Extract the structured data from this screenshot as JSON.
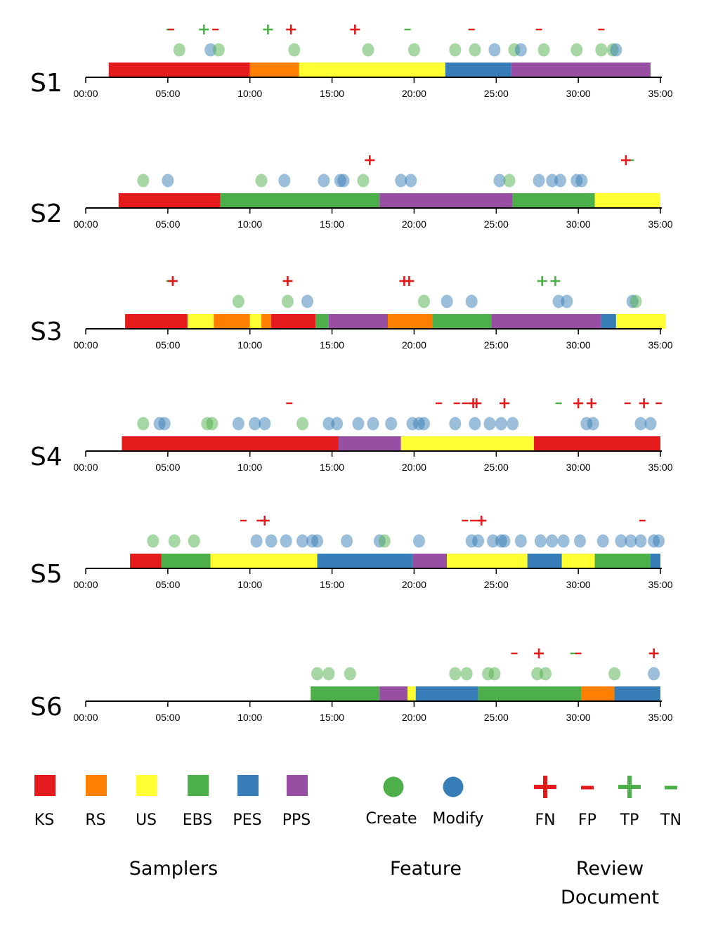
{
  "colors": {
    "KS": "#e41a1c",
    "RS": "#ff7f00",
    "US": "#ffff33",
    "EBS": "#4daf4a",
    "PES": "#377eb8",
    "PPS": "#984ea3",
    "create": "#4daf4a",
    "modify": "#377eb8",
    "fn": "#e41a1c",
    "fp": "#e41a1c",
    "tp": "#4daf4a",
    "tn": "#4daf4a"
  },
  "chart_data": {
    "type": "timeline",
    "x_unit": "minutes",
    "xlim": [
      0,
      35
    ],
    "tick_values": [
      0,
      5,
      10,
      15,
      20,
      25,
      30,
      35
    ],
    "tick_labels": [
      "00:00",
      "05:00",
      "10:00",
      "15:00",
      "20:00",
      "25:00",
      "30:00",
      "35:00"
    ],
    "sessions": [
      {
        "label": "S1",
        "segments": [
          {
            "sampler": "KS",
            "start": 1.4,
            "end": 10.0
          },
          {
            "sampler": "RS",
            "start": 10.0,
            "end": 13.0
          },
          {
            "sampler": "US",
            "start": 13.0,
            "end": 21.9
          },
          {
            "sampler": "PES",
            "start": 21.9,
            "end": 25.9
          },
          {
            "sampler": "PPS",
            "start": 25.9,
            "end": 34.4
          }
        ],
        "features": [
          {
            "t": 5.7,
            "kind": "create"
          },
          {
            "t": 7.6,
            "kind": "modify"
          },
          {
            "t": 8.1,
            "kind": "create"
          },
          {
            "t": 12.7,
            "kind": "create"
          },
          {
            "t": 17.2,
            "kind": "create"
          },
          {
            "t": 20.0,
            "kind": "create"
          },
          {
            "t": 22.5,
            "kind": "create"
          },
          {
            "t": 23.7,
            "kind": "create"
          },
          {
            "t": 24.9,
            "kind": "modify"
          },
          {
            "t": 26.1,
            "kind": "create"
          },
          {
            "t": 26.5,
            "kind": "modify"
          },
          {
            "t": 27.9,
            "kind": "create"
          },
          {
            "t": 29.9,
            "kind": "create"
          },
          {
            "t": 31.4,
            "kind": "create"
          },
          {
            "t": 32.1,
            "kind": "create"
          },
          {
            "t": 32.3,
            "kind": "modify"
          }
        ],
        "reviews": [
          {
            "t": 5.1,
            "kind": "TN"
          },
          {
            "t": 5.2,
            "kind": "FP"
          },
          {
            "t": 7.2,
            "kind": "TP"
          },
          {
            "t": 7.9,
            "kind": "FP"
          },
          {
            "t": 11.1,
            "kind": "TP"
          },
          {
            "t": 12.5,
            "kind": "FN"
          },
          {
            "t": 16.4,
            "kind": "FN"
          },
          {
            "t": 19.6,
            "kind": "TN"
          },
          {
            "t": 23.5,
            "kind": "FP"
          },
          {
            "t": 27.6,
            "kind": "FP"
          },
          {
            "t": 31.4,
            "kind": "FP"
          }
        ]
      },
      {
        "label": "S2",
        "segments": [
          {
            "sampler": "KS",
            "start": 2.0,
            "end": 8.2
          },
          {
            "sampler": "EBS",
            "start": 8.2,
            "end": 17.9
          },
          {
            "sampler": "PPS",
            "start": 17.9,
            "end": 26.0
          },
          {
            "sampler": "EBS",
            "start": 26.0,
            "end": 31.0
          },
          {
            "sampler": "US",
            "start": 31.0,
            "end": 35.0
          }
        ],
        "features": [
          {
            "t": 3.5,
            "kind": "create"
          },
          {
            "t": 5.0,
            "kind": "modify"
          },
          {
            "t": 10.7,
            "kind": "create"
          },
          {
            "t": 12.1,
            "kind": "modify"
          },
          {
            "t": 14.5,
            "kind": "modify"
          },
          {
            "t": 15.5,
            "kind": "modify"
          },
          {
            "t": 15.7,
            "kind": "modify"
          },
          {
            "t": 16.9,
            "kind": "create"
          },
          {
            "t": 19.2,
            "kind": "modify"
          },
          {
            "t": 19.8,
            "kind": "modify"
          },
          {
            "t": 25.2,
            "kind": "modify"
          },
          {
            "t": 25.8,
            "kind": "create"
          },
          {
            "t": 27.6,
            "kind": "modify"
          },
          {
            "t": 28.4,
            "kind": "modify"
          },
          {
            "t": 28.9,
            "kind": "modify"
          },
          {
            "t": 29.9,
            "kind": "modify"
          },
          {
            "t": 30.2,
            "kind": "modify"
          }
        ],
        "reviews": [
          {
            "t": 17.3,
            "kind": "FN"
          },
          {
            "t": 33.2,
            "kind": "TN"
          },
          {
            "t": 32.9,
            "kind": "FN"
          }
        ]
      },
      {
        "label": "S3",
        "segments": [
          {
            "sampler": "KS",
            "start": 2.4,
            "end": 6.2
          },
          {
            "sampler": "US",
            "start": 6.2,
            "end": 7.8
          },
          {
            "sampler": "RS",
            "start": 7.8,
            "end": 10.0
          },
          {
            "sampler": "US",
            "start": 10.0,
            "end": 10.7
          },
          {
            "sampler": "RS",
            "start": 10.7,
            "end": 11.3
          },
          {
            "sampler": "KS",
            "start": 11.3,
            "end": 14.0
          },
          {
            "sampler": "EBS",
            "start": 14.0,
            "end": 14.8
          },
          {
            "sampler": "PPS",
            "start": 14.8,
            "end": 18.4
          },
          {
            "sampler": "RS",
            "start": 18.4,
            "end": 21.1
          },
          {
            "sampler": "EBS",
            "start": 21.1,
            "end": 24.7
          },
          {
            "sampler": "PPS",
            "start": 24.7,
            "end": 31.4
          },
          {
            "sampler": "PES",
            "start": 31.4,
            "end": 32.3
          },
          {
            "sampler": "US",
            "start": 32.3,
            "end": 35.3
          }
        ],
        "features": [
          {
            "t": 9.3,
            "kind": "create"
          },
          {
            "t": 12.3,
            "kind": "create"
          },
          {
            "t": 13.5,
            "kind": "modify"
          },
          {
            "t": 20.6,
            "kind": "create"
          },
          {
            "t": 22.0,
            "kind": "modify"
          },
          {
            "t": 23.5,
            "kind": "modify"
          },
          {
            "t": 28.8,
            "kind": "modify"
          },
          {
            "t": 29.3,
            "kind": "modify"
          },
          {
            "t": 33.3,
            "kind": "modify"
          },
          {
            "t": 33.5,
            "kind": "create"
          }
        ],
        "reviews": [
          {
            "t": 5.1,
            "kind": "TN"
          },
          {
            "t": 5.3,
            "kind": "FN"
          },
          {
            "t": 12.3,
            "kind": "FN"
          },
          {
            "t": 19.4,
            "kind": "FN"
          },
          {
            "t": 19.7,
            "kind": "FN"
          },
          {
            "t": 27.8,
            "kind": "TP"
          },
          {
            "t": 28.6,
            "kind": "TP"
          }
        ]
      },
      {
        "label": "S4",
        "segments": [
          {
            "sampler": "KS",
            "start": 2.2,
            "end": 15.4
          },
          {
            "sampler": "PPS",
            "start": 15.4,
            "end": 19.2
          },
          {
            "sampler": "US",
            "start": 19.2,
            "end": 27.3
          },
          {
            "sampler": "KS",
            "start": 27.3,
            "end": 35.0
          }
        ],
        "features": [
          {
            "t": 3.5,
            "kind": "create"
          },
          {
            "t": 4.5,
            "kind": "modify"
          },
          {
            "t": 4.8,
            "kind": "modify"
          },
          {
            "t": 7.4,
            "kind": "create"
          },
          {
            "t": 7.7,
            "kind": "create"
          },
          {
            "t": 9.3,
            "kind": "modify"
          },
          {
            "t": 10.3,
            "kind": "modify"
          },
          {
            "t": 10.9,
            "kind": "modify"
          },
          {
            "t": 13.2,
            "kind": "create"
          },
          {
            "t": 14.8,
            "kind": "modify"
          },
          {
            "t": 15.3,
            "kind": "modify"
          },
          {
            "t": 16.6,
            "kind": "modify"
          },
          {
            "t": 17.5,
            "kind": "modify"
          },
          {
            "t": 18.6,
            "kind": "modify"
          },
          {
            "t": 19.9,
            "kind": "modify"
          },
          {
            "t": 20.3,
            "kind": "modify"
          },
          {
            "t": 20.6,
            "kind": "modify"
          },
          {
            "t": 22.5,
            "kind": "modify"
          },
          {
            "t": 23.7,
            "kind": "modify"
          },
          {
            "t": 24.6,
            "kind": "modify"
          },
          {
            "t": 25.3,
            "kind": "modify"
          },
          {
            "t": 26.0,
            "kind": "modify"
          },
          {
            "t": 30.5,
            "kind": "modify"
          },
          {
            "t": 30.9,
            "kind": "modify"
          },
          {
            "t": 33.8,
            "kind": "modify"
          },
          {
            "t": 34.4,
            "kind": "modify"
          }
        ],
        "reviews": [
          {
            "t": 12.4,
            "kind": "FP"
          },
          {
            "t": 21.5,
            "kind": "FP"
          },
          {
            "t": 22.6,
            "kind": "FP"
          },
          {
            "t": 23.1,
            "kind": "FP"
          },
          {
            "t": 23.6,
            "kind": "FN"
          },
          {
            "t": 23.8,
            "kind": "FN"
          },
          {
            "t": 25.5,
            "kind": "FN"
          },
          {
            "t": 28.8,
            "kind": "TN"
          },
          {
            "t": 30.0,
            "kind": "FN"
          },
          {
            "t": 30.8,
            "kind": "FN"
          },
          {
            "t": 33.0,
            "kind": "FP"
          },
          {
            "t": 34.0,
            "kind": "FN"
          },
          {
            "t": 34.9,
            "kind": "FP"
          }
        ]
      },
      {
        "label": "S5",
        "segments": [
          {
            "sampler": "KS",
            "start": 2.7,
            "end": 4.6
          },
          {
            "sampler": "EBS",
            "start": 4.6,
            "end": 7.6
          },
          {
            "sampler": "US",
            "start": 7.6,
            "end": 14.1
          },
          {
            "sampler": "PES",
            "start": 14.1,
            "end": 19.9
          },
          {
            "sampler": "PPS",
            "start": 19.9,
            "end": 22.0
          },
          {
            "sampler": "US",
            "start": 22.0,
            "end": 26.9
          },
          {
            "sampler": "PES",
            "start": 26.9,
            "end": 29.0
          },
          {
            "sampler": "US",
            "start": 29.0,
            "end": 31.0
          },
          {
            "sampler": "EBS",
            "start": 31.0,
            "end": 34.4
          },
          {
            "sampler": "PES",
            "start": 34.4,
            "end": 35.0
          }
        ],
        "features": [
          {
            "t": 4.1,
            "kind": "create"
          },
          {
            "t": 5.4,
            "kind": "create"
          },
          {
            "t": 6.6,
            "kind": "create"
          },
          {
            "t": 10.4,
            "kind": "modify"
          },
          {
            "t": 11.3,
            "kind": "modify"
          },
          {
            "t": 12.2,
            "kind": "modify"
          },
          {
            "t": 13.2,
            "kind": "modify"
          },
          {
            "t": 13.8,
            "kind": "modify"
          },
          {
            "t": 14.1,
            "kind": "modify"
          },
          {
            "t": 15.9,
            "kind": "modify"
          },
          {
            "t": 17.9,
            "kind": "modify"
          },
          {
            "t": 18.2,
            "kind": "create"
          },
          {
            "t": 20.3,
            "kind": "modify"
          },
          {
            "t": 23.5,
            "kind": "modify"
          },
          {
            "t": 23.9,
            "kind": "modify"
          },
          {
            "t": 24.8,
            "kind": "modify"
          },
          {
            "t": 25.3,
            "kind": "modify"
          },
          {
            "t": 25.5,
            "kind": "modify"
          },
          {
            "t": 26.5,
            "kind": "modify"
          },
          {
            "t": 27.7,
            "kind": "modify"
          },
          {
            "t": 28.4,
            "kind": "modify"
          },
          {
            "t": 29.1,
            "kind": "modify"
          },
          {
            "t": 30.1,
            "kind": "modify"
          },
          {
            "t": 31.5,
            "kind": "modify"
          },
          {
            "t": 32.6,
            "kind": "modify"
          },
          {
            "t": 33.2,
            "kind": "modify"
          },
          {
            "t": 33.8,
            "kind": "modify"
          },
          {
            "t": 34.6,
            "kind": "modify"
          },
          {
            "t": 34.9,
            "kind": "modify"
          }
        ],
        "reviews": [
          {
            "t": 9.6,
            "kind": "FP"
          },
          {
            "t": 10.6,
            "kind": "FP"
          },
          {
            "t": 10.9,
            "kind": "FN"
          },
          {
            "t": 23.1,
            "kind": "FP"
          },
          {
            "t": 23.6,
            "kind": "FP"
          },
          {
            "t": 24.1,
            "kind": "FN"
          },
          {
            "t": 33.9,
            "kind": "FP"
          }
        ]
      },
      {
        "label": "S6",
        "segments": [
          {
            "sampler": "EBS",
            "start": 13.7,
            "end": 17.9
          },
          {
            "sampler": "PPS",
            "start": 17.9,
            "end": 19.6
          },
          {
            "sampler": "US",
            "start": 19.6,
            "end": 20.1
          },
          {
            "sampler": "PES",
            "start": 20.1,
            "end": 23.9
          },
          {
            "sampler": "EBS",
            "start": 23.9,
            "end": 30.2
          },
          {
            "sampler": "RS",
            "start": 30.2,
            "end": 32.2
          },
          {
            "sampler": "PES",
            "start": 32.2,
            "end": 35.0
          }
        ],
        "features": [
          {
            "t": 14.1,
            "kind": "create"
          },
          {
            "t": 14.8,
            "kind": "create"
          },
          {
            "t": 16.1,
            "kind": "create"
          },
          {
            "t": 22.5,
            "kind": "create"
          },
          {
            "t": 23.2,
            "kind": "create"
          },
          {
            "t": 24.5,
            "kind": "create"
          },
          {
            "t": 24.9,
            "kind": "create"
          },
          {
            "t": 27.5,
            "kind": "create"
          },
          {
            "t": 28.0,
            "kind": "create"
          },
          {
            "t": 32.2,
            "kind": "create"
          },
          {
            "t": 34.6,
            "kind": "modify"
          }
        ],
        "reviews": [
          {
            "t": 26.1,
            "kind": "FP"
          },
          {
            "t": 27.6,
            "kind": "FN"
          },
          {
            "t": 29.7,
            "kind": "TN"
          },
          {
            "t": 30.0,
            "kind": "FP"
          },
          {
            "t": 34.6,
            "kind": "FN"
          }
        ]
      }
    ],
    "legend": {
      "samplers": [
        "KS",
        "RS",
        "US",
        "EBS",
        "PES",
        "PPS"
      ],
      "feature": [
        {
          "key": "create",
          "label": "Create"
        },
        {
          "key": "modify",
          "label": "Modify"
        }
      ],
      "review": [
        "FN",
        "FP",
        "TP",
        "TN"
      ],
      "groups": [
        "Samplers",
        "Feature",
        "Review",
        "Document"
      ]
    }
  }
}
